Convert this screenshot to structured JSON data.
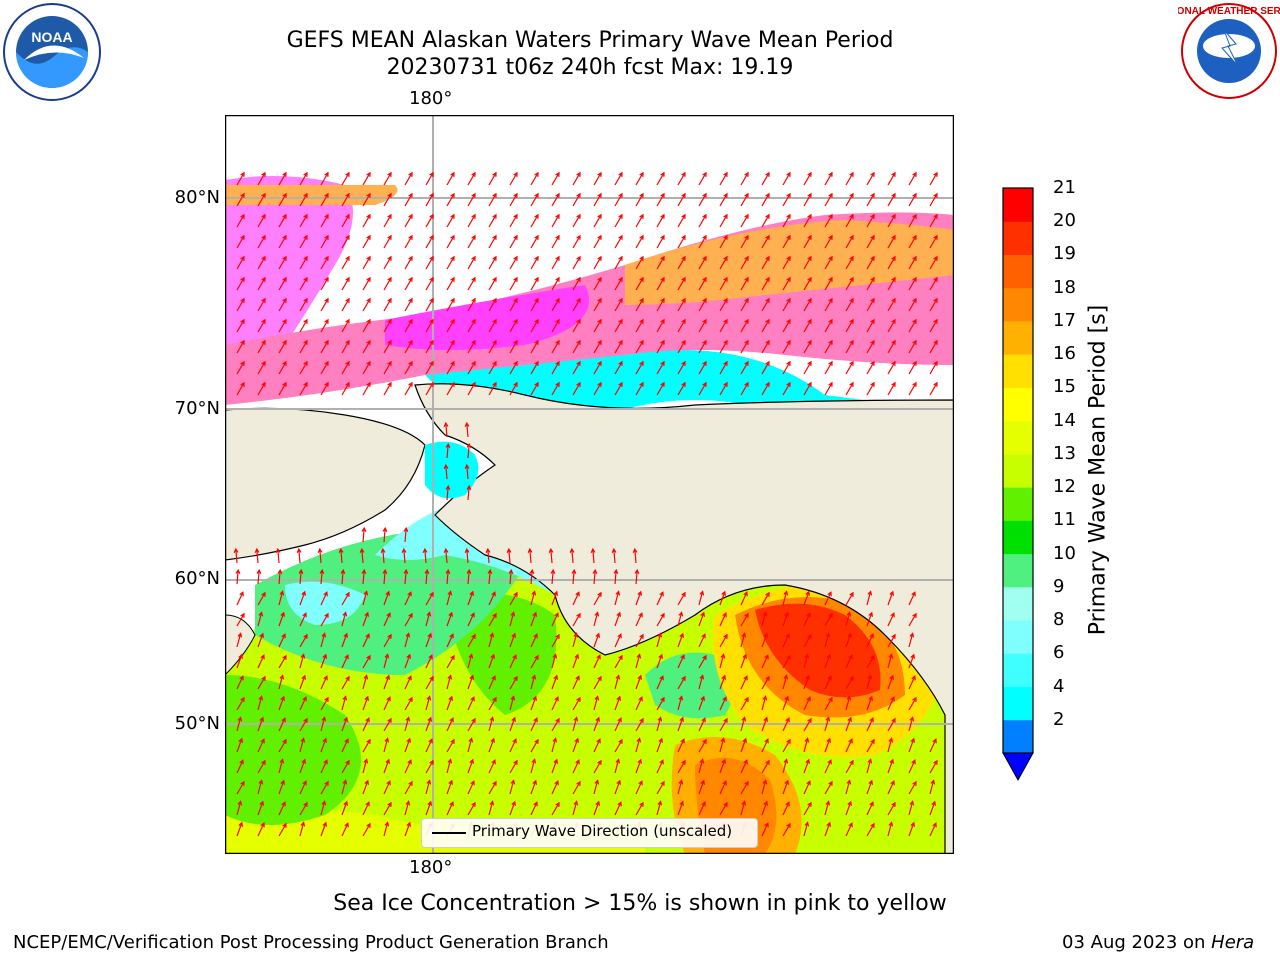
{
  "title": {
    "line1": "GEFS MEAN Alaskan Waters Primary Wave Mean Period",
    "line2": "20230731 t06z 240h fcst   Max: 19.19"
  },
  "map": {
    "lon_labels": [
      "180°",
      "180°"
    ],
    "lat_labels": [
      "80°N",
      "70°N",
      "60°N",
      "50°N"
    ],
    "land_color": "#efecdc",
    "grid": true
  },
  "colorbar": {
    "label": "Primary Wave Mean Period [s]",
    "ticks": [
      "21",
      "20",
      "19",
      "18",
      "17",
      "16",
      "15",
      "14",
      "13",
      "12",
      "11",
      "10",
      "9",
      "8",
      "6",
      "4",
      "2"
    ],
    "colors_bottom_to_top": [
      "#0080ff",
      "#00ffff",
      "#40ffff",
      "#80ffff",
      "#a0fff0",
      "#50f080",
      "#00e000",
      "#60f000",
      "#c8ff00",
      "#e6ff00",
      "#ffff00",
      "#ffe000",
      "#ffb000",
      "#ff8800",
      "#ff6000",
      "#ff3000",
      "#ff0000"
    ],
    "extend_color": "#0000ff"
  },
  "legend": {
    "text": "Primary Wave Direction (unscaled)"
  },
  "caption": "Sea Ice Concentration > 15% is shown in pink to yellow",
  "footer": {
    "left": "NCEP/EMC/Verification Post Processing Product Generation Branch",
    "right_date": "03 Aug 2023 on ",
    "right_machine": "Hera"
  },
  "logos": {
    "noaa": "NOAA",
    "nws": "NATIONAL WEATHER SERVICE"
  }
}
